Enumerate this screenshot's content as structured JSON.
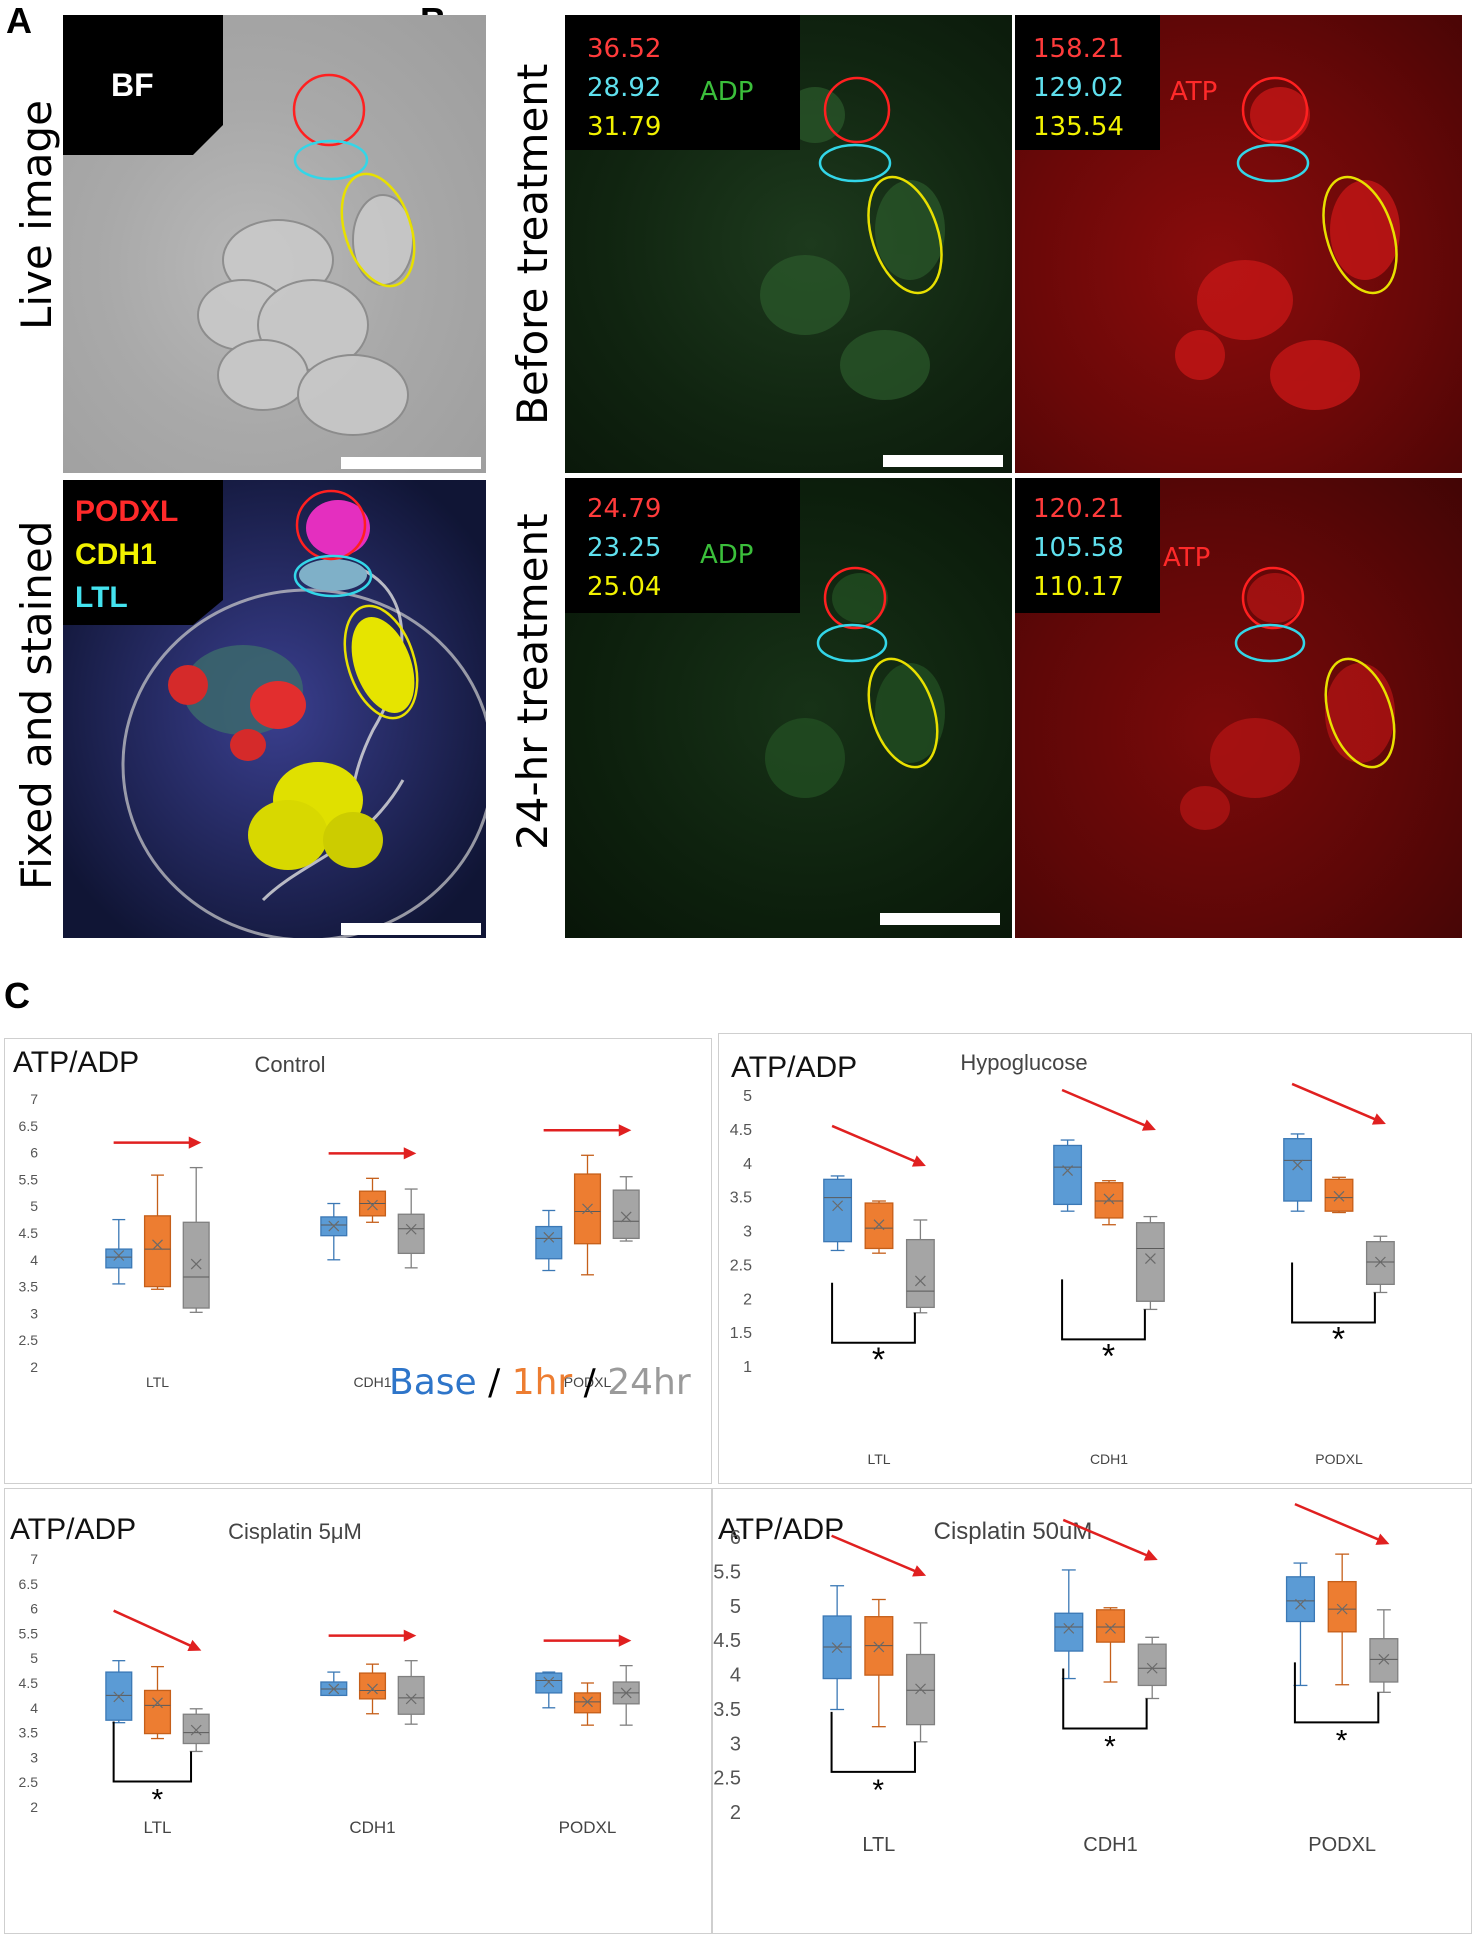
{
  "panels": {
    "a": "A",
    "b": "B",
    "c": "C"
  },
  "row_labels": {
    "live": "Live image",
    "fixed": "Fixed and stained",
    "before": "Before treatment",
    "after": "24-hr treatment"
  },
  "panel_a": {
    "bf_label": "BF",
    "stain_labels": [
      {
        "text": "PODXL",
        "color": "#ff2a2a"
      },
      {
        "text": "CDH1",
        "color": "#f2f200"
      },
      {
        "text": "LTL",
        "color": "#44e3ef"
      }
    ]
  },
  "panel_b": {
    "adp_label": "ADP",
    "atp_label": "ATP",
    "before": {
      "adp_values": [
        "36.52",
        "28.92",
        "31.79"
      ],
      "atp_values": [
        "158.21",
        "129.02",
        "135.54"
      ]
    },
    "after": {
      "adp_values": [
        "24.79",
        "23.25",
        "25.04"
      ],
      "atp_values": [
        "120.21",
        "105.58",
        "110.17"
      ]
    },
    "value_colors": [
      "#ff3b3b",
      "#5fe0ee",
      "#f2f200"
    ]
  },
  "legend": {
    "base": "Base",
    "sep1": " / ",
    "one_hr": "1hr",
    "sep2": " / ",
    "day": "24hr"
  },
  "colors": {
    "base": "#5b9bd5",
    "one_hr": "#ed7d31",
    "day": "#a5a5a5",
    "arrow": "#e02020"
  },
  "chart_data": [
    {
      "type": "box",
      "ylabel": "ATP/ADP",
      "title": "Control",
      "categories": [
        "LTL",
        "CDH1",
        "PODXL"
      ],
      "ylim": [
        2,
        7
      ],
      "yticks": [
        "2",
        "2.5",
        "3",
        "3.5",
        "4",
        "4.5",
        "5",
        "5.5",
        "6",
        "6.5",
        "7"
      ],
      "series": [
        {
          "name": "Base",
          "boxes": [
            [
              3.55,
              3.85,
              4.05,
              4.2,
              4.75,
              4.08
            ],
            [
              4.0,
              4.45,
              4.65,
              4.8,
              5.05,
              4.63
            ],
            [
              3.8,
              4.02,
              4.4,
              4.62,
              4.92,
              4.42
            ]
          ]
        },
        {
          "name": "1hr",
          "boxes": [
            [
              3.45,
              3.5,
              4.2,
              4.82,
              5.58,
              4.28
            ],
            [
              4.7,
              4.82,
              5.05,
              5.28,
              5.52,
              5.02
            ],
            [
              3.72,
              4.3,
              4.9,
              5.6,
              5.95,
              4.95
            ]
          ]
        },
        {
          "name": "24hr",
          "boxes": [
            [
              3.02,
              3.1,
              3.68,
              4.7,
              5.72,
              3.92
            ],
            [
              3.85,
              4.12,
              4.58,
              4.85,
              5.32,
              4.57
            ],
            [
              4.35,
              4.4,
              4.72,
              5.3,
              5.55,
              4.8
            ]
          ]
        }
      ],
      "trends": [
        "flat",
        "flat",
        "flat"
      ],
      "significance": [
        false,
        false,
        false
      ],
      "star": "*"
    },
    {
      "type": "box",
      "ylabel": "ATP/ADP",
      "title": "Hypoglucose",
      "categories": [
        "LTL",
        "CDH1",
        "PODXL"
      ],
      "ylim": [
        1,
        5
      ],
      "yticks": [
        "1",
        "1.5",
        "2",
        "2.5",
        "3",
        "3.5",
        "4",
        "4.5",
        "5"
      ],
      "series": [
        {
          "name": "Base",
          "boxes": [
            [
              2.72,
              2.85,
              3.5,
              3.77,
              3.82,
              3.38
            ],
            [
              3.3,
              3.4,
              3.95,
              4.27,
              4.35,
              3.9
            ],
            [
              3.3,
              3.45,
              4.05,
              4.37,
              4.44,
              3.98
            ]
          ]
        },
        {
          "name": "1hr",
          "boxes": [
            [
              2.68,
              2.75,
              3.05,
              3.42,
              3.45,
              3.1
            ],
            [
              3.1,
              3.2,
              3.45,
              3.72,
              3.75,
              3.48
            ],
            [
              3.28,
              3.3,
              3.5,
              3.77,
              3.8,
              3.52
            ]
          ]
        },
        {
          "name": "24hr",
          "boxes": [
            [
              1.8,
              1.88,
              2.12,
              2.88,
              3.17,
              2.27
            ],
            [
              1.85,
              1.97,
              2.75,
              3.13,
              3.22,
              2.6
            ],
            [
              2.1,
              2.22,
              2.55,
              2.85,
              2.93,
              2.55
            ]
          ]
        }
      ],
      "trends": [
        "down",
        "down",
        "down"
      ],
      "significance": [
        true,
        true,
        true
      ],
      "star": "*"
    },
    {
      "type": "box",
      "ylabel": "ATP/ADP",
      "title": "Cisplatin 5μM",
      "categories": [
        "LTL",
        "CDH1",
        "PODXL"
      ],
      "ylim": [
        2,
        7
      ],
      "yticks": [
        "2",
        "2.5",
        "3",
        "3.5",
        "4",
        "4.5",
        "5",
        "5.5",
        "6",
        "6.5",
        "7"
      ],
      "series": [
        {
          "name": "Base",
          "boxes": [
            [
              3.7,
              3.75,
              4.25,
              4.72,
              4.95,
              4.22
            ],
            [
              4.25,
              4.25,
              4.38,
              4.52,
              4.72,
              4.38
            ],
            [
              4.0,
              4.3,
              4.55,
              4.7,
              4.72,
              4.52
            ]
          ]
        },
        {
          "name": "1hr",
          "boxes": [
            [
              3.38,
              3.48,
              4.05,
              4.35,
              4.83,
              4.1
            ],
            [
              3.88,
              4.18,
              4.35,
              4.7,
              4.88,
              4.38
            ],
            [
              3.65,
              3.9,
              4.12,
              4.3,
              4.5,
              4.12
            ]
          ]
        },
        {
          "name": "24hr",
          "boxes": [
            [
              3.12,
              3.28,
              3.5,
              3.87,
              3.98,
              3.55
            ],
            [
              3.67,
              3.87,
              4.2,
              4.63,
              4.95,
              4.18
            ],
            [
              3.65,
              4.08,
              4.3,
              4.52,
              4.85,
              4.3
            ]
          ]
        }
      ],
      "trends": [
        "down",
        "flat",
        "flat"
      ],
      "significance": [
        true,
        false,
        false
      ],
      "star": "*"
    },
    {
      "type": "box",
      "ylabel": "ATP/ADP",
      "title": "Cisplatin 50uM",
      "categories": [
        "LTL",
        "CDH1",
        "PODXL"
      ],
      "ylim": [
        2,
        6
      ],
      "yticks": [
        "2",
        "2.5",
        "3",
        "3.5",
        "4",
        "4.5",
        "5",
        "5.5",
        "6"
      ],
      "series": [
        {
          "name": "Base",
          "boxes": [
            [
              3.52,
              3.97,
              4.43,
              4.88,
              5.32,
              4.42
            ],
            [
              3.97,
              4.37,
              4.72,
              4.92,
              5.55,
              4.7
            ],
            [
              3.87,
              4.8,
              5.1,
              5.45,
              5.65,
              5.05
            ]
          ]
        },
        {
          "name": "1hr",
          "boxes": [
            [
              3.27,
              4.02,
              4.45,
              4.87,
              5.12,
              4.43
            ],
            [
              3.92,
              4.5,
              4.72,
              4.97,
              5.0,
              4.7
            ],
            [
              3.88,
              4.65,
              4.98,
              5.38,
              5.78,
              4.98
            ]
          ]
        },
        {
          "name": "24hr",
          "boxes": [
            [
              3.05,
              3.3,
              3.8,
              4.32,
              4.78,
              3.82
            ],
            [
              3.68,
              3.87,
              4.12,
              4.47,
              4.57,
              4.12
            ],
            [
              3.77,
              3.92,
              4.25,
              4.55,
              4.97,
              4.25
            ]
          ]
        }
      ],
      "trends": [
        "down",
        "down",
        "down"
      ],
      "significance": [
        true,
        true,
        true
      ],
      "star": "*"
    }
  ]
}
